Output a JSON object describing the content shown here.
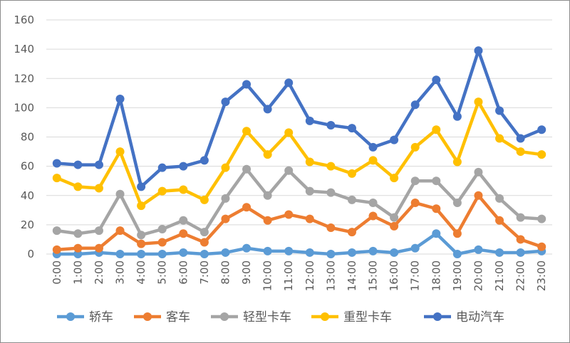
{
  "chart_data": {
    "type": "line",
    "categories": [
      "0:00",
      "1:00",
      "2:00",
      "3:00",
      "4:00",
      "5:00",
      "6:00",
      "7:00",
      "8:00",
      "9:00",
      "10:00",
      "11:00",
      "12:00",
      "13:00",
      "14:00",
      "15:00",
      "16:00",
      "17:00",
      "18:00",
      "19:00",
      "20:00",
      "21:00",
      "22:00",
      "23:00"
    ],
    "ylim": [
      0,
      160
    ],
    "yticks": [
      0,
      20,
      40,
      60,
      80,
      100,
      120,
      140,
      160
    ],
    "grid": true,
    "legend_position": "bottom",
    "series": [
      {
        "name": "轿车",
        "color": "#5b9bd5",
        "values": [
          0,
          0,
          1,
          0,
          0,
          0,
          1,
          0,
          1,
          4,
          2,
          2,
          1,
          0,
          1,
          2,
          1,
          4,
          14,
          0,
          3,
          1,
          1,
          2
        ]
      },
      {
        "name": "客车",
        "color": "#ed7d31",
        "values": [
          3,
          4,
          4,
          16,
          7,
          8,
          14,
          8,
          24,
          32,
          23,
          27,
          24,
          18,
          15,
          26,
          19,
          35,
          31,
          14,
          40,
          23,
          10,
          5
        ]
      },
      {
        "name": "轻型卡车",
        "color": "#a5a5a5",
        "values": [
          16,
          14,
          16,
          41,
          13,
          17,
          23,
          15,
          38,
          58,
          40,
          57,
          43,
          42,
          37,
          35,
          25,
          50,
          50,
          35,
          56,
          38,
          25,
          24
        ]
      },
      {
        "name": "重型卡车",
        "color": "#ffc000",
        "values": [
          52,
          46,
          45,
          70,
          33,
          43,
          44,
          37,
          59,
          84,
          68,
          83,
          63,
          60,
          55,
          64,
          52,
          73,
          85,
          63,
          104,
          79,
          70,
          68
        ]
      },
      {
        "name": "电动汽车",
        "color": "#4472c4",
        "values": [
          62,
          61,
          61,
          106,
          46,
          59,
          60,
          64,
          104,
          116,
          99,
          117,
          91,
          88,
          86,
          73,
          78,
          102,
          119,
          94,
          139,
          98,
          79,
          85
        ]
      }
    ]
  }
}
